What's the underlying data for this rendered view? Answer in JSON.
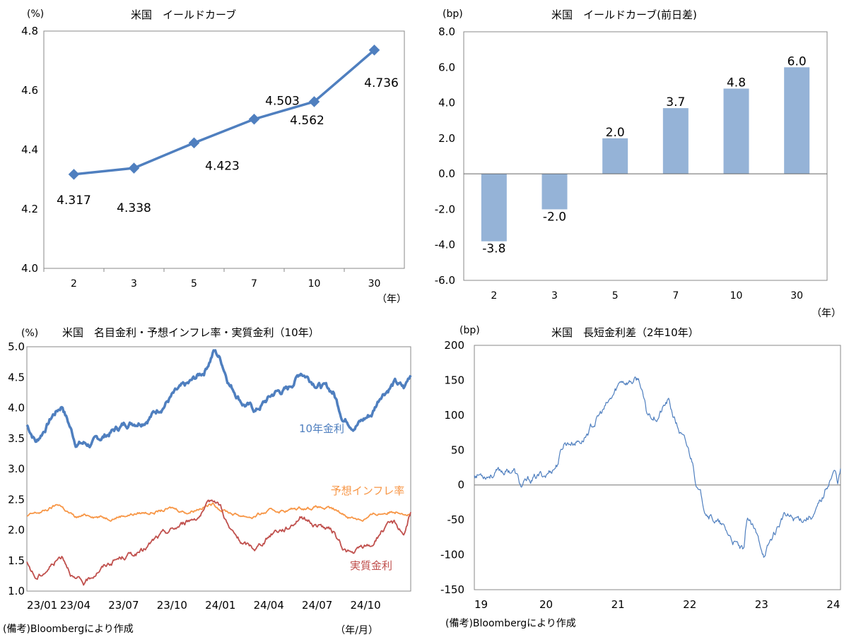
{
  "chart_data": [
    {
      "id": "yield_curve",
      "type": "line",
      "title": "米国　イールドカーブ",
      "ylabel": "(%)",
      "xunit": "（年）",
      "ylim": [
        4.0,
        4.8
      ],
      "yticks": [
        "4.0",
        "4.2",
        "4.4",
        "4.6",
        "4.8"
      ],
      "categories": [
        "2",
        "3",
        "5",
        "7",
        "10",
        "30"
      ],
      "values": [
        4.317,
        4.338,
        4.423,
        4.503,
        4.562,
        4.736
      ],
      "labels": [
        "4.317",
        "4.338",
        "4.423",
        "4.503",
        "4.562",
        "4.736"
      ],
      "color": "#4F7FBF"
    },
    {
      "id": "yield_change",
      "type": "bar",
      "title": "米国　イールドカーブ(前日差)",
      "ylabel": "(bp)",
      "xunit": "（年）",
      "ylim": [
        -6.0,
        8.0
      ],
      "yticks": [
        "8.0",
        "6.0",
        "4.0",
        "2.0",
        "0.0",
        "-2.0",
        "-4.0",
        "-6.0"
      ],
      "categories": [
        "2",
        "3",
        "5",
        "7",
        "10",
        "30"
      ],
      "values": [
        -3.8,
        -2.0,
        2.0,
        3.7,
        4.8,
        6.0
      ],
      "labels": [
        "-3.8",
        "-2.0",
        "2.0",
        "3.7",
        "4.8",
        "6.0"
      ],
      "color": "#95B3D7"
    },
    {
      "id": "real_rates",
      "type": "line",
      "title": "米国　名目金利・予想インフレ率・実質金利（10年）",
      "ylabel": "(%)",
      "xunit": "（年/月）",
      "ylim": [
        1.0,
        5.0
      ],
      "yticks": [
        "5.0",
        "4.5",
        "4.0",
        "3.5",
        "3.0",
        "2.5",
        "2.0",
        "1.5",
        "1.0"
      ],
      "xticks": [
        "23/01",
        "23/04",
        "23/07",
        "23/10",
        "24/01",
        "24/04",
        "24/07",
        "24/10"
      ],
      "note": "(備考)Bloombergにより作成",
      "series": [
        {
          "name": "10年金利",
          "color": "#4F7FBF",
          "anchors": [
            [
              0,
              3.72
            ],
            [
              0.03,
              3.45
            ],
            [
              0.08,
              3.88
            ],
            [
              0.11,
              4.05
            ],
            [
              0.15,
              3.45
            ],
            [
              0.2,
              3.4
            ],
            [
              0.26,
              3.6
            ],
            [
              0.31,
              3.75
            ],
            [
              0.36,
              3.82
            ],
            [
              0.4,
              3.95
            ],
            [
              0.45,
              4.2
            ],
            [
              0.5,
              4.35
            ],
            [
              0.55,
              4.6
            ],
            [
              0.58,
              4.95
            ],
            [
              0.6,
              4.8
            ],
            [
              0.63,
              4.4
            ],
            [
              0.67,
              4.1
            ],
            [
              0.71,
              3.95
            ],
            [
              0.74,
              4.1
            ],
            [
              0.77,
              4.25
            ],
            [
              0.81,
              4.3
            ],
            [
              0.85,
              4.6
            ],
            [
              0.89,
              4.45
            ],
            [
              0.92,
              4.35
            ],
            [
              0.95,
              4.25
            ],
            [
              0.98,
              3.85
            ],
            [
              1.01,
              3.75
            ],
            [
              1.04,
              3.8
            ],
            [
              1.07,
              3.9
            ],
            [
              1.1,
              4.25
            ],
            [
              1.14,
              4.42
            ],
            [
              1.17,
              4.3
            ],
            [
              1.19,
              4.55
            ]
          ],
          "noise": 0.06,
          "width": 3.5
        },
        {
          "name": "予想インフレ率",
          "color": "#F79646",
          "anchors": [
            [
              0,
              2.22
            ],
            [
              0.05,
              2.3
            ],
            [
              0.1,
              2.42
            ],
            [
              0.15,
              2.2
            ],
            [
              0.2,
              2.25
            ],
            [
              0.25,
              2.2
            ],
            [
              0.3,
              2.25
            ],
            [
              0.35,
              2.28
            ],
            [
              0.4,
              2.3
            ],
            [
              0.45,
              2.35
            ],
            [
              0.5,
              2.3
            ],
            [
              0.55,
              2.4
            ],
            [
              0.58,
              2.42
            ],
            [
              0.6,
              2.35
            ],
            [
              0.65,
              2.25
            ],
            [
              0.7,
              2.22
            ],
            [
              0.75,
              2.3
            ],
            [
              0.8,
              2.32
            ],
            [
              0.85,
              2.36
            ],
            [
              0.9,
              2.38
            ],
            [
              0.95,
              2.32
            ],
            [
              1.0,
              2.22
            ],
            [
              1.04,
              2.18
            ],
            [
              1.08,
              2.25
            ],
            [
              1.12,
              2.3
            ],
            [
              1.16,
              2.32
            ],
            [
              1.19,
              2.28
            ]
          ],
          "noise": 0.03,
          "width": 1.8
        },
        {
          "name": "実質金利",
          "color": "#C0504D",
          "anchors": [
            [
              0,
              1.45
            ],
            [
              0.03,
              1.2
            ],
            [
              0.08,
              1.45
            ],
            [
              0.11,
              1.6
            ],
            [
              0.15,
              1.2
            ],
            [
              0.18,
              1.1
            ],
            [
              0.22,
              1.35
            ],
            [
              0.27,
              1.5
            ],
            [
              0.32,
              1.6
            ],
            [
              0.36,
              1.65
            ],
            [
              0.4,
              1.85
            ],
            [
              0.45,
              2.0
            ],
            [
              0.5,
              2.15
            ],
            [
              0.55,
              2.3
            ],
            [
              0.58,
              2.5
            ],
            [
              0.6,
              2.4
            ],
            [
              0.63,
              2.0
            ],
            [
              0.67,
              1.75
            ],
            [
              0.71,
              1.7
            ],
            [
              0.74,
              1.85
            ],
            [
              0.77,
              2.0
            ],
            [
              0.81,
              2.05
            ],
            [
              0.85,
              2.25
            ],
            [
              0.89,
              2.1
            ],
            [
              0.92,
              2.05
            ],
            [
              0.95,
              1.95
            ],
            [
              0.98,
              1.7
            ],
            [
              1.01,
              1.6
            ],
            [
              1.04,
              1.7
            ],
            [
              1.07,
              1.75
            ],
            [
              1.1,
              2.0
            ],
            [
              1.14,
              2.1
            ],
            [
              1.17,
              1.95
            ],
            [
              1.19,
              2.3
            ]
          ],
          "noise": 0.05,
          "width": 1.8
        }
      ]
    },
    {
      "id": "spread",
      "type": "line",
      "title": "米国　長短金利差（2年10年）",
      "ylabel": "(bp)",
      "ylim": [
        -150,
        200
      ],
      "yticks": [
        "200",
        "150",
        "100",
        "50",
        "0",
        "-50",
        "-100",
        "-150"
      ],
      "xticks": [
        "19",
        "20",
        "21",
        "22",
        "23",
        "24"
      ],
      "note": "(備考)Bloombergにより作成",
      "series": [
        {
          "name": "",
          "color": "#4F7FBF",
          "anchors": [
            [
              0,
              15
            ],
            [
              0.3,
              18
            ],
            [
              0.55,
              22
            ],
            [
              0.65,
              -3
            ],
            [
              0.85,
              10
            ],
            [
              1.0,
              15
            ],
            [
              1.15,
              30
            ],
            [
              1.25,
              60
            ],
            [
              1.5,
              65
            ],
            [
              1.75,
              100
            ],
            [
              1.9,
              120
            ],
            [
              2.05,
              150
            ],
            [
              2.3,
              150
            ],
            [
              2.4,
              100
            ],
            [
              2.55,
              100
            ],
            [
              2.7,
              120
            ],
            [
              2.8,
              90
            ],
            [
              2.95,
              55
            ],
            [
              3.05,
              30
            ],
            [
              3.1,
              0
            ],
            [
              3.2,
              -30
            ],
            [
              3.4,
              -55
            ],
            [
              3.6,
              -80
            ],
            [
              3.75,
              -100
            ],
            [
              3.8,
              -45
            ],
            [
              3.95,
              -80
            ],
            [
              4.05,
              -100
            ],
            [
              4.15,
              -75
            ],
            [
              4.3,
              -45
            ],
            [
              4.45,
              -50
            ],
            [
              4.6,
              -45
            ],
            [
              4.75,
              -40
            ],
            [
              4.85,
              -20
            ],
            [
              4.95,
              10
            ],
            [
              5.02,
              20
            ],
            [
              5.06,
              5
            ],
            [
              5.1,
              20
            ]
          ],
          "noise": 6,
          "width": 1.2
        }
      ]
    }
  ]
}
